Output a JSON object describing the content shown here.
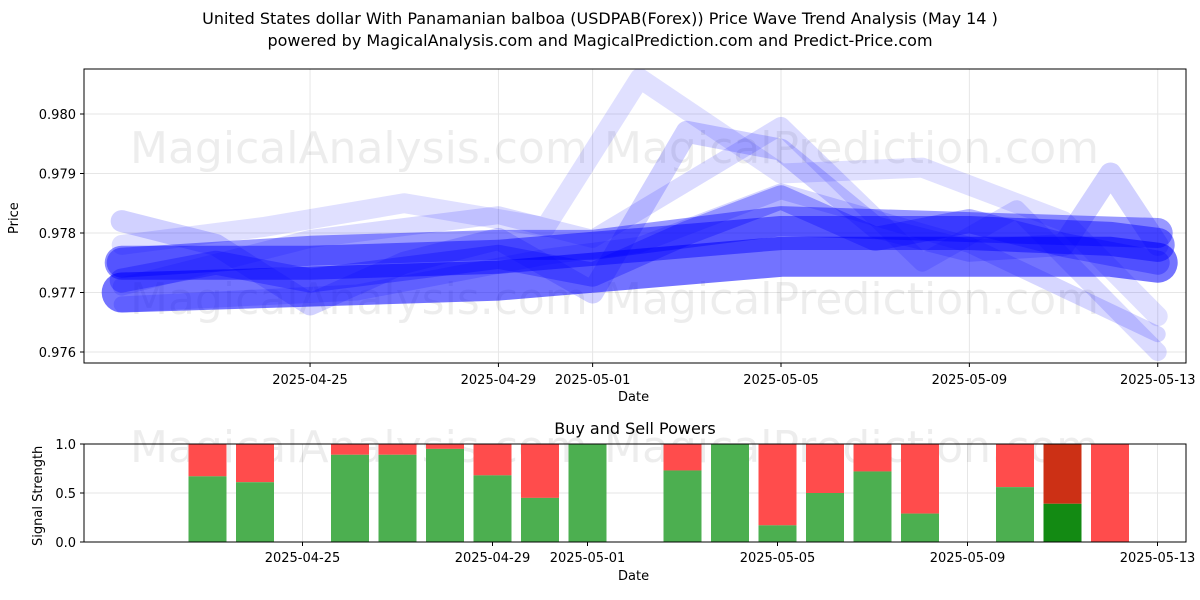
{
  "header": {
    "title": "United States dollar With Panamanian balboa (USDPAB(Forex)) Price Wave Trend Analysis (May 14 )",
    "subtitle": "powered by MagicalAnalysis.com and MagicalPrediction.com and Predict-Price.com"
  },
  "watermarks": [
    "MagicalAnalysis.com",
    "MagicalPrediction.com"
  ],
  "colors": {
    "wave": "#0000ff",
    "buy": "#4caf50",
    "sell": "#ff4c4c",
    "buy_dark": "#138a13",
    "sell_dark": "#cc3015",
    "grid": "#e6e6e6"
  },
  "chart_data": [
    {
      "type": "line",
      "title": "",
      "xlabel": "Date",
      "ylabel": "Price",
      "xlim": [
        "2025-04-21",
        "2025-05-13"
      ],
      "ylim": [
        0.9758,
        0.9808
      ],
      "x_ticks": [
        "2025-04-25",
        "2025-04-29",
        "2025-05-01",
        "2025-05-05",
        "2025-05-09",
        "2025-05-13"
      ],
      "y_ticks": [
        0.976,
        0.977,
        0.978,
        0.979,
        0.98
      ],
      "grid": true,
      "series": [
        {
          "x": [
            "2025-04-21",
            "2025-04-25",
            "2025-04-29",
            "2025-05-02",
            "2025-05-05",
            "2025-05-09",
            "2025-05-12",
            "2025-05-13"
          ],
          "y": [
            0.977,
            0.9771,
            0.9772,
            0.9774,
            0.9776,
            0.9776,
            0.9776,
            0.9775
          ],
          "alpha": 0.55,
          "width": 40
        },
        {
          "x": [
            "2025-04-21",
            "2025-04-25",
            "2025-04-29",
            "2025-05-02",
            "2025-05-05",
            "2025-05-09",
            "2025-05-12",
            "2025-05-13"
          ],
          "y": [
            0.9775,
            0.9775,
            0.9776,
            0.9778,
            0.978,
            0.978,
            0.9779,
            0.9778
          ],
          "alpha": 0.45,
          "width": 34
        },
        {
          "x": [
            "2025-04-21",
            "2025-04-25",
            "2025-04-29",
            "2025-05-01",
            "2025-05-05",
            "2025-05-09",
            "2025-05-13"
          ],
          "y": [
            0.9775,
            0.9777,
            0.9778,
            0.9778,
            0.9782,
            0.9781,
            0.978
          ],
          "alpha": 0.4,
          "width": 30
        },
        {
          "x": [
            "2025-04-21",
            "2025-04-23",
            "2025-04-25",
            "2025-04-27",
            "2025-04-29",
            "2025-05-01",
            "2025-05-03",
            "2025-05-05",
            "2025-05-07",
            "2025-05-09",
            "2025-05-11",
            "2025-05-13"
          ],
          "y": [
            0.9772,
            0.9775,
            0.9772,
            0.9774,
            0.9776,
            0.9773,
            0.978,
            0.9786,
            0.9779,
            0.9782,
            0.9778,
            0.9775
          ],
          "alpha": 0.3,
          "width": 24
        },
        {
          "x": [
            "2025-04-21",
            "2025-04-23",
            "2025-04-25",
            "2025-04-27",
            "2025-04-29",
            "2025-05-01",
            "2025-05-03",
            "2025-05-05",
            "2025-05-07",
            "2025-05-09",
            "2025-05-11",
            "2025-05-12",
            "2025-05-13"
          ],
          "y": [
            0.9782,
            0.9778,
            0.9768,
            0.9775,
            0.9779,
            0.977,
            0.9797,
            0.9794,
            0.9781,
            0.9777,
            0.9778,
            0.979,
            0.9778
          ],
          "alpha": 0.18,
          "width": 22
        },
        {
          "x": [
            "2025-04-21",
            "2025-04-24",
            "2025-04-27",
            "2025-04-30",
            "2025-05-02",
            "2025-05-05",
            "2025-05-08",
            "2025-05-11",
            "2025-05-13"
          ],
          "y": [
            0.9778,
            0.9781,
            0.9785,
            0.9781,
            0.9806,
            0.979,
            0.9791,
            0.9782,
            0.9766
          ],
          "alpha": 0.12,
          "width": 20
        },
        {
          "x": [
            "2025-04-21",
            "2025-04-25",
            "2025-04-29",
            "2025-05-01",
            "2025-05-05",
            "2025-05-08",
            "2025-05-10",
            "2025-05-13"
          ],
          "y": [
            0.9771,
            0.9779,
            0.9783,
            0.9779,
            0.9798,
            0.9775,
            0.9784,
            0.976
          ],
          "alpha": 0.14,
          "width": 18
        },
        {
          "x": [
            "2025-04-21",
            "2025-04-26",
            "2025-04-30",
            "2025-05-02",
            "2025-05-05",
            "2025-05-09",
            "2025-05-13"
          ],
          "y": [
            0.9768,
            0.977,
            0.9776,
            0.9778,
            0.9787,
            0.9778,
            0.9763
          ],
          "alpha": 0.16,
          "width": 16
        }
      ]
    },
    {
      "type": "bar",
      "title": "Buy and Sell Powers",
      "xlabel": "Date",
      "ylabel": "Signal Strength",
      "ylim": [
        0,
        1.0
      ],
      "y_ticks": [
        0.0,
        0.5,
        1.0
      ],
      "x_ticks": [
        "2025-04-25",
        "2025-04-29",
        "2025-05-01",
        "2025-05-05",
        "2025-05-09",
        "2025-05-13"
      ],
      "grid": true,
      "bars": [
        {
          "date": "2025-04-23",
          "buy": 0.67
        },
        {
          "date": "2025-04-24",
          "buy": 0.61
        },
        {
          "date": "2025-04-26",
          "buy": 0.89
        },
        {
          "date": "2025-04-27",
          "buy": 0.89
        },
        {
          "date": "2025-04-28",
          "buy": 0.95
        },
        {
          "date": "2025-04-29",
          "buy": 0.68
        },
        {
          "date": "2025-04-30",
          "buy": 0.45
        },
        {
          "date": "2025-05-01",
          "buy": 1.0
        },
        {
          "date": "2025-05-03",
          "buy": 0.73
        },
        {
          "date": "2025-05-04",
          "buy": 1.0
        },
        {
          "date": "2025-05-05",
          "buy": 0.17
        },
        {
          "date": "2025-05-06",
          "buy": 0.5
        },
        {
          "date": "2025-05-07",
          "buy": 0.72
        },
        {
          "date": "2025-05-08",
          "buy": 0.29
        },
        {
          "date": "2025-05-10",
          "buy": 0.56
        },
        {
          "date": "2025-05-11",
          "buy": 0.39,
          "highlight": true
        },
        {
          "date": "2025-05-12",
          "buy": 0.0
        }
      ]
    }
  ]
}
